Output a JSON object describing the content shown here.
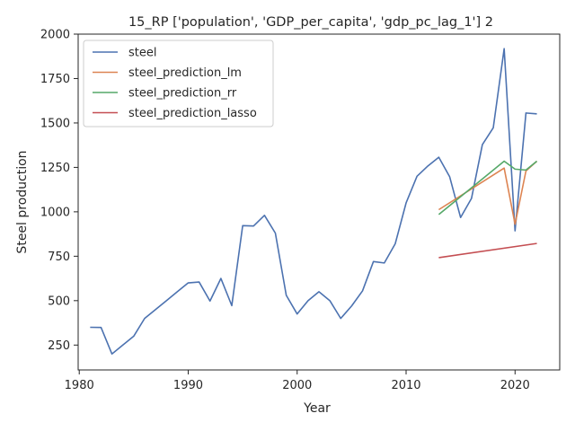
{
  "chart_data": {
    "type": "line",
    "title": "15_RP ['population', 'GDP_per_capita', 'gdp_pc_lag_1'] 2",
    "xlabel": "Year",
    "ylabel": "Steel production",
    "xlim": [
      1979.9,
      2024.1
    ],
    "ylim": [
      110,
      2000
    ],
    "xticks": [
      1980,
      1990,
      2000,
      2010,
      2020
    ],
    "yticks": [
      250,
      500,
      750,
      1000,
      1250,
      1500,
      1750,
      2000
    ],
    "grid": false,
    "legend_position": "top-left",
    "series": [
      {
        "name": "steel",
        "color": "#4c72b0",
        "x": [
          1981,
          1982,
          1983,
          1984,
          1985,
          1986,
          1987,
          1988,
          1989,
          1990,
          1991,
          1992,
          1993,
          1994,
          1995,
          1996,
          1997,
          1998,
          1999,
          2000,
          2001,
          2002,
          2003,
          2004,
          2005,
          2006,
          2007,
          2008,
          2009,
          2010,
          2011,
          2012,
          2013,
          2014,
          2015,
          2016,
          2017,
          2018,
          2019,
          2020,
          2021,
          2022
        ],
        "y": [
          350,
          349,
          200,
          250,
          300,
          400,
          450,
          500,
          550,
          600,
          605,
          498,
          625,
          472,
          922,
          920,
          980,
          880,
          530,
          425,
          500,
          550,
          500,
          400,
          470,
          555,
          720,
          712,
          820,
          1050,
          1200,
          1258,
          1307,
          1197,
          968,
          1075,
          1378,
          1473,
          1918,
          893,
          1556,
          1551
        ]
      },
      {
        "name": "steel_prediction_lm",
        "color": "#dd8452",
        "x": [
          2013,
          2019,
          2020,
          2021,
          2022
        ],
        "y": [
          1012,
          1246,
          930,
          1230,
          1285
        ]
      },
      {
        "name": "steel_prediction_rr",
        "color": "#55a868",
        "x": [
          2013,
          2019,
          2020,
          2021,
          2022
        ],
        "y": [
          985,
          1285,
          1240,
          1235,
          1285
        ]
      },
      {
        "name": "steel_prediction_lasso",
        "color": "#c44e52",
        "x": [
          2013,
          2022
        ],
        "y": [
          742,
          822
        ]
      }
    ]
  }
}
